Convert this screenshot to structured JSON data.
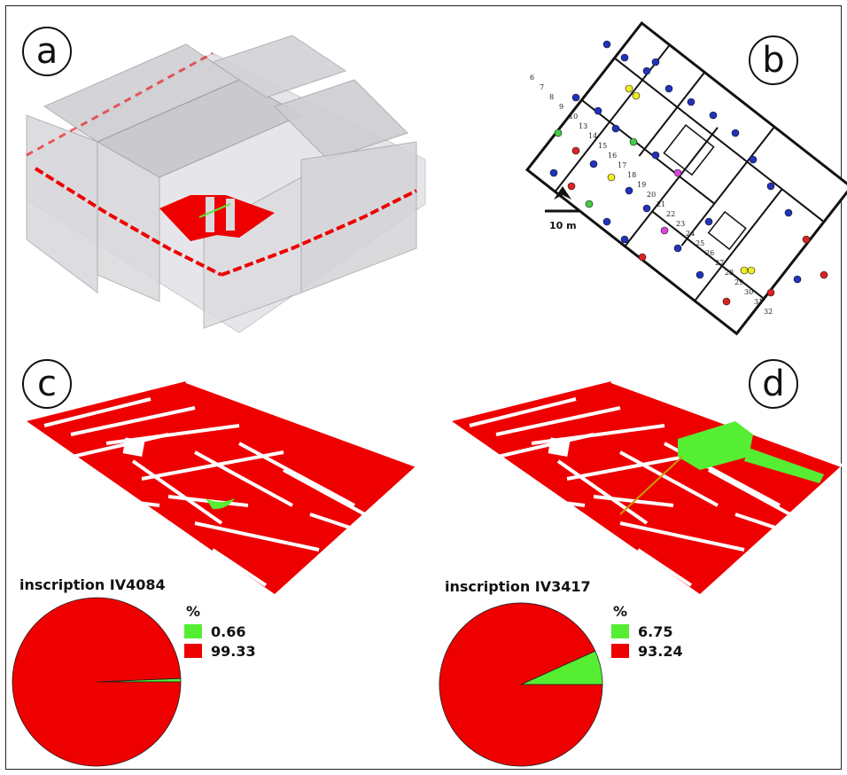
{
  "panels": {
    "a": {
      "label": "a"
    },
    "b": {
      "label": "b",
      "scale_label": "10 m",
      "room_numbers": [
        "6",
        "7",
        "8",
        "9",
        "10",
        "13",
        "14",
        "15",
        "16",
        "17",
        "18",
        "19",
        "20",
        "21",
        "22",
        "23",
        "24",
        "25",
        "26",
        "27",
        "28",
        "29",
        "30",
        "31",
        "32"
      ]
    },
    "c": {
      "label": "c"
    },
    "d": {
      "label": "d"
    }
  },
  "colors": {
    "visible": "#55ee33",
    "not_visible": "#ee0000",
    "wall": "#ffffff",
    "marker_blue": "#2233bb",
    "marker_red": "#dd2222",
    "marker_green": "#44cc44",
    "marker_yellow": "#eeee22",
    "marker_magenta": "#dd44dd"
  },
  "chart_data": [
    {
      "type": "pie",
      "title": "inscription IV4084",
      "legend_title": "%",
      "slices": [
        {
          "label": "0.66",
          "value": 0.66,
          "color": "#55ee33"
        },
        {
          "label": "99.33",
          "value": 99.33,
          "color": "#ee0000"
        }
      ]
    },
    {
      "type": "pie",
      "title": "inscription IV3417",
      "legend_title": "%",
      "slices": [
        {
          "label": "6.75",
          "value": 6.75,
          "color": "#55ee33"
        },
        {
          "label": "93.24",
          "value": 93.24,
          "color": "#ee0000"
        }
      ]
    }
  ]
}
